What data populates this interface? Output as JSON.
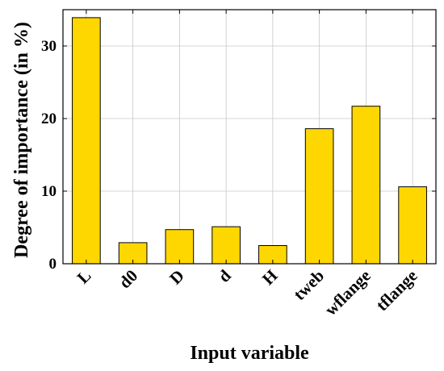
{
  "chart_data": {
    "type": "bar",
    "categories": [
      "L",
      "d0",
      "D",
      "d",
      "H",
      "tweb",
      "wflange",
      "tflange"
    ],
    "values": [
      33.9,
      2.9,
      4.7,
      5.1,
      2.5,
      18.6,
      21.7,
      10.6
    ],
    "title": "",
    "xlabel": "Input variable",
    "ylabel": "Degree of importance (in %)",
    "ylim": [
      0,
      35
    ],
    "yticks": [
      0,
      10,
      20,
      30
    ],
    "grid": true,
    "bar_color": "#FFD700",
    "bar_edge_color": "#000000"
  }
}
